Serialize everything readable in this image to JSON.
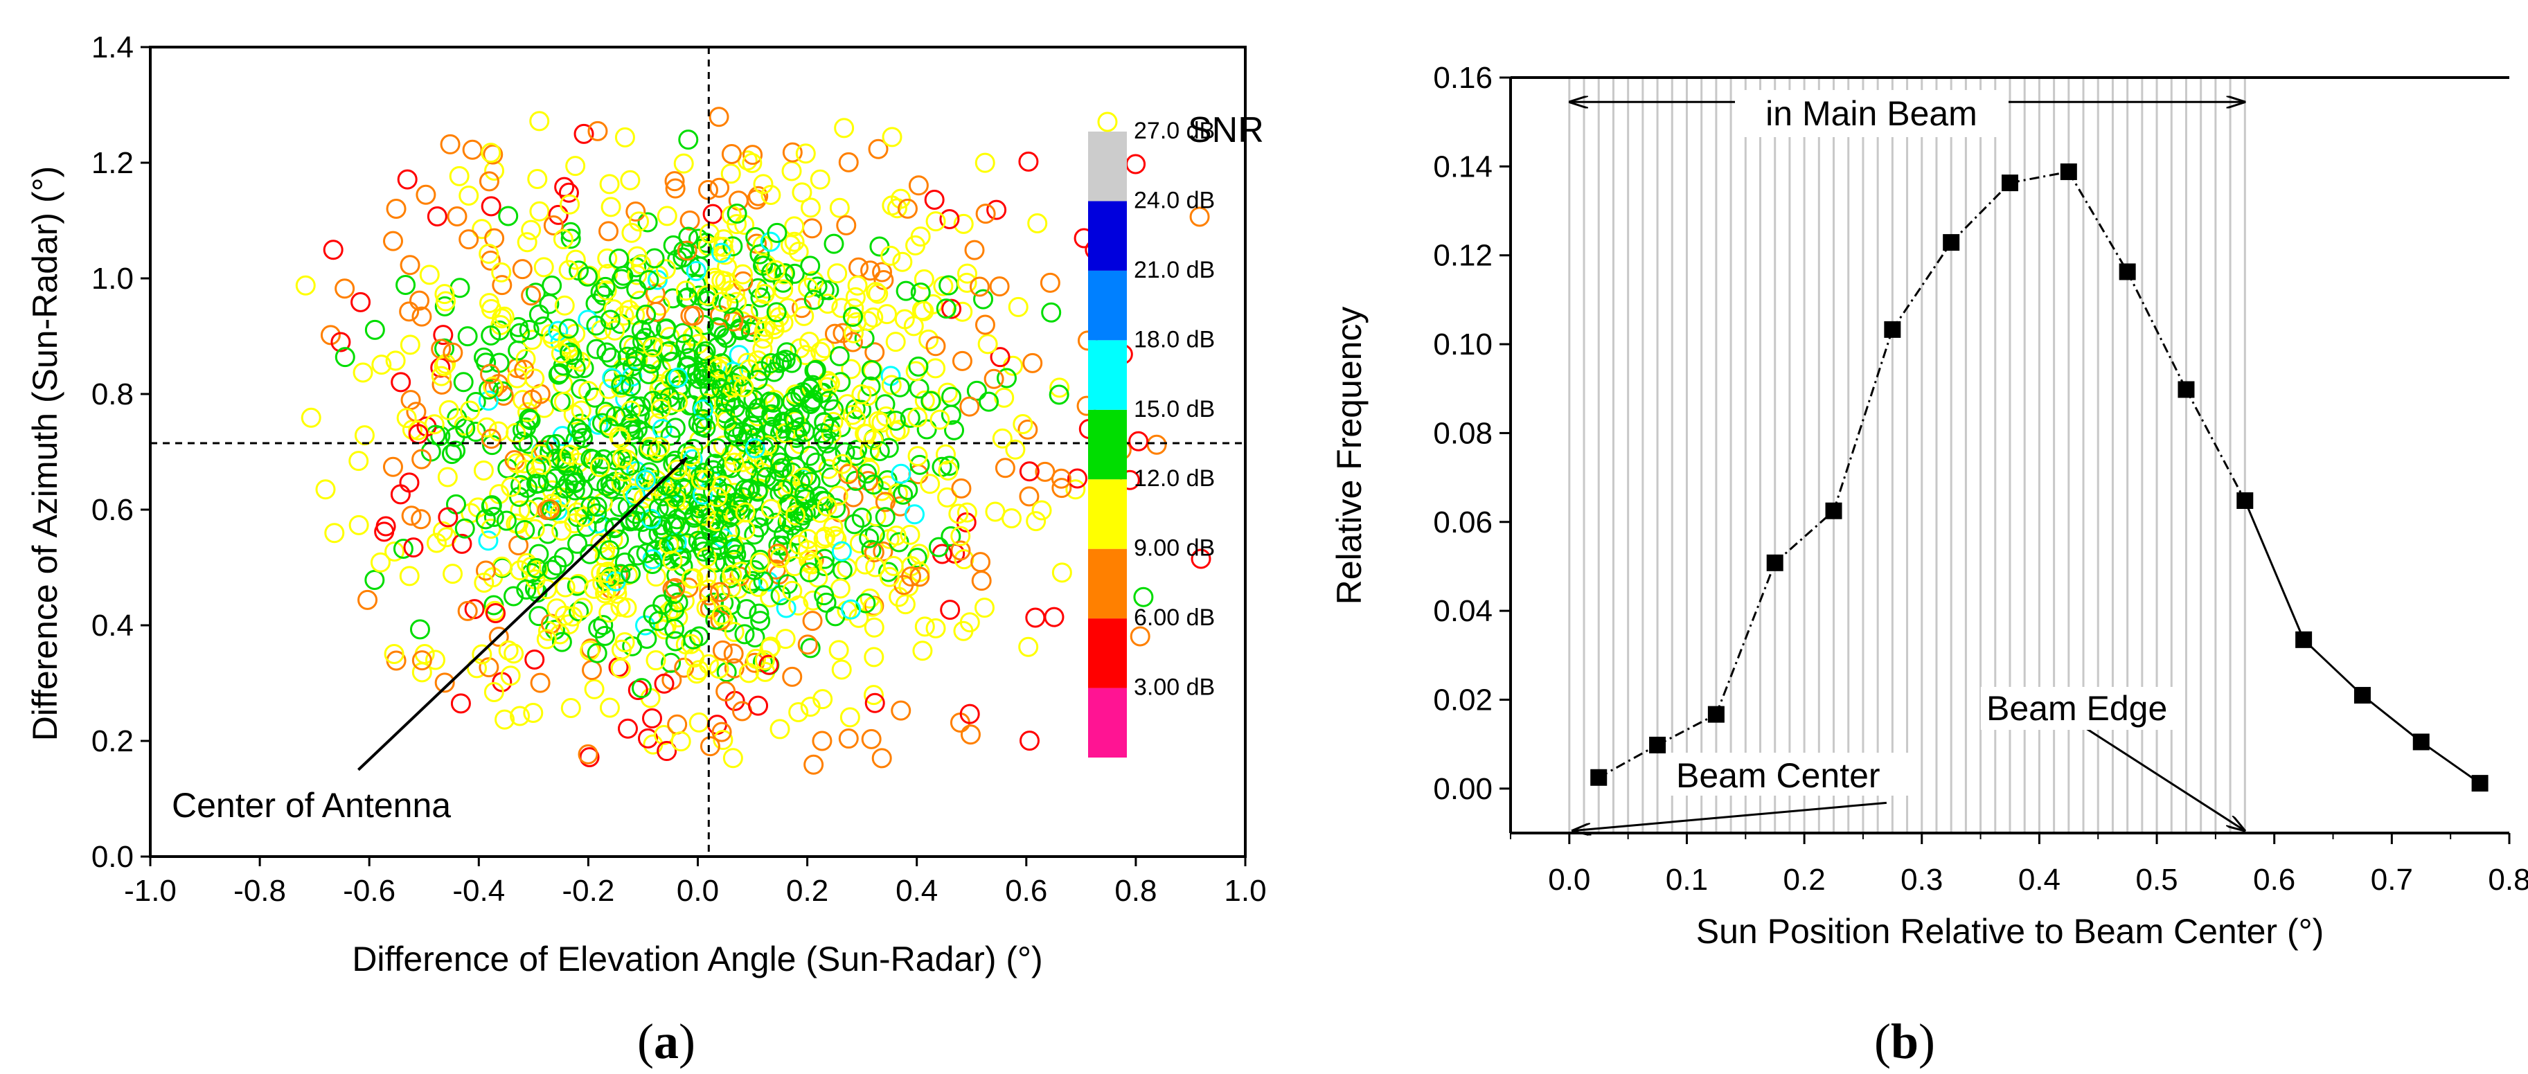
{
  "chart_data": [
    {
      "id": "a",
      "type": "scatter",
      "panel_label": "(a)",
      "xlabel": "Difference of Elevation Angle (Sun-Radar) (°)",
      "ylabel": "Difference of  Azimuth (Sun-Radar) (°)",
      "xlim": [
        -1.0,
        1.0
      ],
      "ylim": [
        0.0,
        1.4
      ],
      "xticks": [
        "-1.0",
        "-0.8",
        "-0.6",
        "-0.4",
        "-0.2",
        "0.0",
        "0.2",
        "0.4",
        "0.6",
        "0.8",
        "1.0"
      ],
      "yticks": [
        "0.0",
        "0.2",
        "0.4",
        "0.6",
        "0.8",
        "1.0",
        "1.2",
        "1.4"
      ],
      "reference_lines": {
        "x": 0.02,
        "y": 0.715
      },
      "annotation": {
        "text": "Center of Antenna",
        "arrow_from": [
          -0.62,
          0.15
        ],
        "arrow_to": [
          -0.02,
          0.69
        ]
      },
      "colorbar": {
        "title": "SNR",
        "bins": [
          {
            "color": "#ff1493",
            "label": "3.00 dB"
          },
          {
            "color": "#ff0000",
            "label": "6.00 dB"
          },
          {
            "color": "#ff8000",
            "label": "9.00 dB"
          },
          {
            "color": "#ffff00",
            "label": "12.0 dB"
          },
          {
            "color": "#00dd00",
            "label": "15.0 dB"
          },
          {
            "color": "#00ffff",
            "label": "18.0 dB"
          },
          {
            "color": "#0080ff",
            "label": "21.0 dB"
          },
          {
            "color": "#0000dd",
            "label": "24.0 dB"
          },
          {
            "color": "#cccccc",
            "label": "27.0 dB"
          }
        ]
      },
      "point_count": 1500,
      "distribution": {
        "center": [
          0.0,
          0.71
        ],
        "x_range": [
          -0.72,
          0.98
        ],
        "y_range": [
          0.15,
          1.28
        ],
        "snr_trend": "green (15 dB) near center, yellow (12 dB) mid, orange/red (6-9 dB) at edges, few cyan (18 dB)"
      }
    },
    {
      "id": "b",
      "type": "line",
      "panel_label": "(b)",
      "xlabel": "Sun Position Relative to Beam Center (°)",
      "ylabel": "Relative Frequency",
      "xlim": [
        -0.05,
        0.8
      ],
      "ylim": [
        -0.01,
        0.16
      ],
      "xticks": [
        "0.0",
        "0.1",
        "0.2",
        "0.3",
        "0.4",
        "0.5",
        "0.6",
        "0.7",
        "0.8"
      ],
      "yticks": [
        "0.00",
        "0.02",
        "0.04",
        "0.06",
        "0.08",
        "0.10",
        "0.12",
        "0.14",
        "0.16"
      ],
      "series": [
        {
          "name": "Relative Frequency",
          "x": [
            0.025,
            0.075,
            0.125,
            0.175,
            0.225,
            0.275,
            0.325,
            0.375,
            0.425,
            0.475,
            0.525,
            0.575,
            0.625,
            0.675,
            0.725,
            0.775
          ],
          "y": [
            0.0025,
            0.0098,
            0.0167,
            0.0508,
            0.0625,
            0.1033,
            0.1229,
            0.1363,
            0.1388,
            0.1163,
            0.0898,
            0.0648,
            0.0335,
            0.021,
            0.0105,
            0.0012
          ],
          "marker": "square",
          "dashed_until_x": 0.575
        }
      ],
      "main_beam": {
        "x_range": [
          0.0,
          0.575
        ],
        "label": "in Main Beam",
        "grid_step": 0.0125
      },
      "annotations": [
        {
          "text": "Beam Center",
          "arrow_to_x": 0.0
        },
        {
          "text": "Beam Edge",
          "arrow_to_x": 0.575
        }
      ]
    }
  ]
}
